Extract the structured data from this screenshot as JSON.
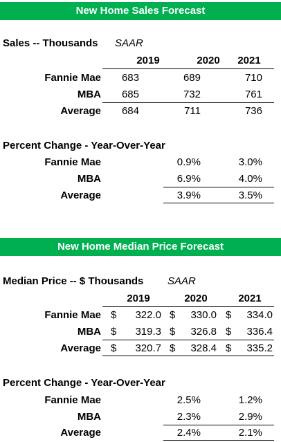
{
  "sales": {
    "banner": "New Home Sales Forecast",
    "heading": "Sales -- Thousands",
    "note": "SAAR",
    "years": [
      "2019",
      "2020",
      "2021"
    ],
    "rows": [
      {
        "label": "Fannie Mae",
        "values": [
          "683",
          "689",
          "710"
        ]
      },
      {
        "label": "MBA",
        "values": [
          "685",
          "732",
          "761"
        ]
      },
      {
        "label": "Average",
        "values": [
          "684",
          "711",
          "736"
        ]
      }
    ],
    "pct_heading": "Percent Change - Year-Over-Year",
    "pct_rows": [
      {
        "label": "Fannie Mae",
        "values": [
          "0.9%",
          "3.0%"
        ]
      },
      {
        "label": "MBA",
        "values": [
          "6.9%",
          "4.0%"
        ]
      },
      {
        "label": "Average",
        "values": [
          "3.9%",
          "3.5%"
        ]
      }
    ]
  },
  "price": {
    "banner": "New Home Median Price Forecast",
    "heading": "Median Price -- $ Thousands",
    "note": "SAAR",
    "years": [
      "2019",
      "2020",
      "2021"
    ],
    "currency": "$",
    "rows": [
      {
        "label": "Fannie Mae",
        "values": [
          "322.0",
          "330.0",
          "334.0"
        ]
      },
      {
        "label": "MBA",
        "values": [
          "319.3",
          "326.8",
          "336.4"
        ]
      },
      {
        "label": "Average",
        "values": [
          "320.7",
          "328.4",
          "335.2"
        ]
      }
    ],
    "pct_heading": "Percent Change - Year-Over-Year",
    "pct_rows": [
      {
        "label": "Fannie Mae",
        "values": [
          "2.5%",
          "1.2%"
        ]
      },
      {
        "label": "MBA",
        "values": [
          "2.3%",
          "2.9%"
        ]
      },
      {
        "label": "Average",
        "values": [
          "2.4%",
          "2.1%"
        ]
      }
    ]
  },
  "colors": {
    "banner_bg": "#00b050",
    "banner_text": "#ffffff"
  }
}
